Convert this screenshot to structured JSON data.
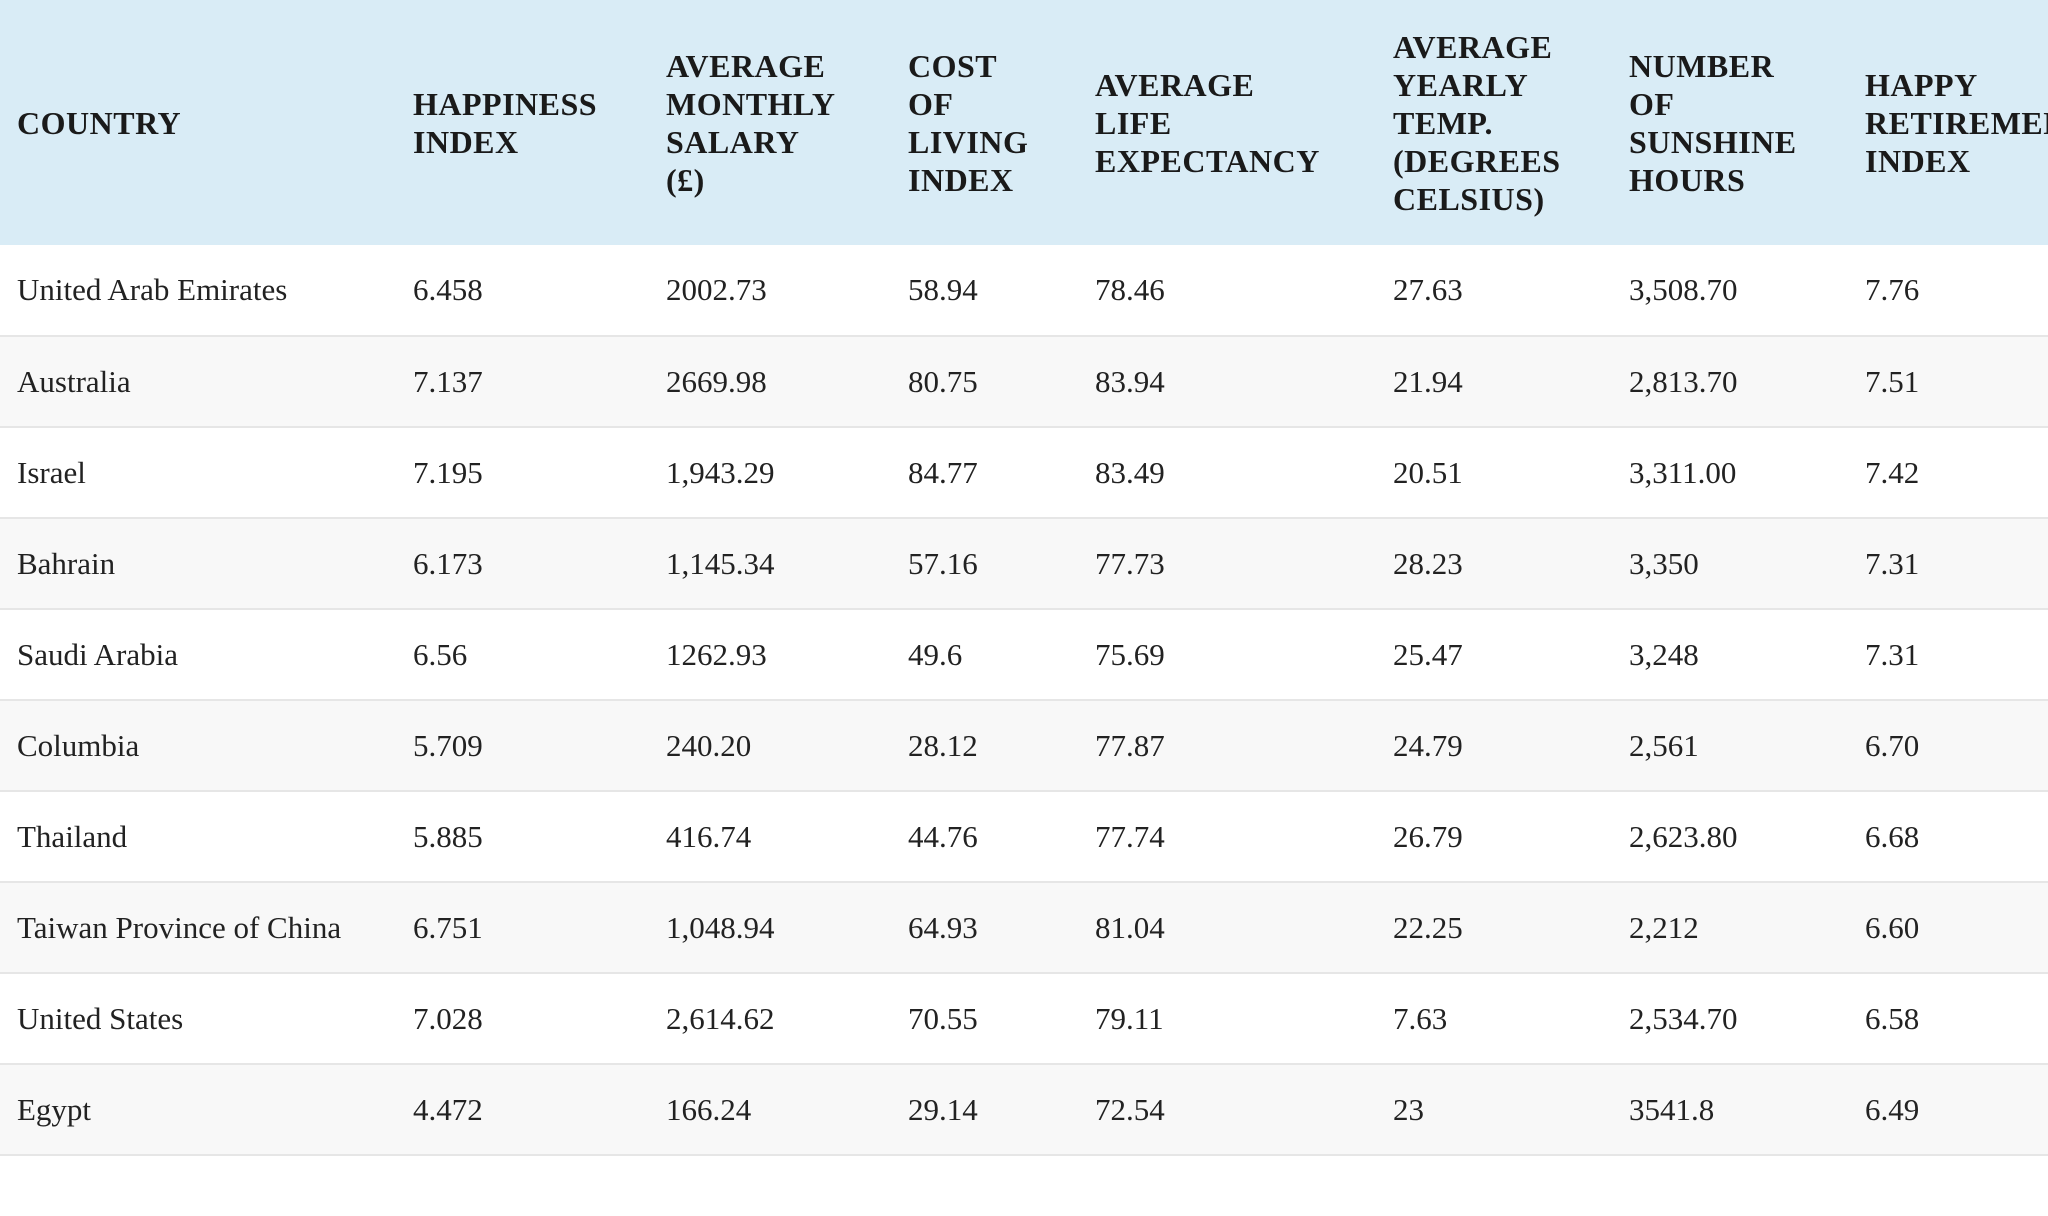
{
  "table": {
    "headers": [
      "COUNTRY",
      "HAPPINESS\nINDEX",
      "AVERAGE\nMONTHLY\nSALARY\n(£)",
      "COST\nOF\nLIVING\nINDEX",
      "AVERAGE\nLIFE\nEXPECTANCY",
      "AVERAGE\nYEARLY\nTEMP.\n(DEGREES\nCELSIUS)",
      "NUMBER\nOF\nSUNSHINE\nHOURS",
      "HAPPY\nRETIREMENT\nINDEX"
    ],
    "rows": [
      [
        "United Arab Emirates",
        "6.458",
        "2002.73",
        "58.94",
        "78.46",
        "27.63",
        "3,508.70",
        "7.76"
      ],
      [
        "Australia",
        "7.137",
        "2669.98",
        "80.75",
        "83.94",
        "21.94",
        "2,813.70",
        "7.51"
      ],
      [
        "Israel",
        "7.195",
        "1,943.29",
        "84.77",
        "83.49",
        "20.51",
        "3,311.00",
        "7.42"
      ],
      [
        "Bahrain",
        "6.173",
        "1,145.34",
        "57.16",
        "77.73",
        "28.23",
        "3,350",
        "7.31"
      ],
      [
        "Saudi Arabia",
        "6.56",
        "1262.93",
        "49.6",
        "75.69",
        "25.47",
        "3,248",
        "7.31"
      ],
      [
        "Columbia",
        "5.709",
        "240.20",
        "28.12",
        "77.87",
        "24.79",
        "2,561",
        "6.70"
      ],
      [
        "Thailand",
        "5.885",
        "416.74",
        "44.76",
        "77.74",
        "26.79",
        "2,623.80",
        "6.68"
      ],
      [
        "Taiwan Province of China",
        "6.751",
        "1,048.94",
        "64.93",
        "81.04",
        "22.25",
        "2,212",
        "6.60"
      ],
      [
        "United States",
        "7.028",
        "2,614.62",
        "70.55",
        "79.11",
        "7.63",
        "2,534.70",
        "6.58"
      ],
      [
        "Egypt",
        "4.472",
        "166.24",
        "29.14",
        "72.54",
        "23",
        "3541.8",
        "6.49"
      ]
    ]
  },
  "colors": {
    "header_background": "#d9ecf6",
    "row_alt_background": "#f8f8f8",
    "row_divider": "#e6e6e6"
  }
}
